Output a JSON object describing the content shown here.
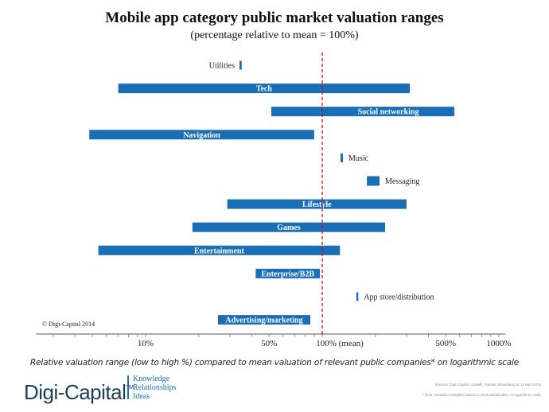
{
  "chart_data": {
    "type": "bar",
    "orientation": "horizontal-range",
    "title": "Mobile app category public market valuation ranges",
    "subtitle": "(percentage relative to mean = 100%)",
    "xlabel": "Relative valuation range (low to high %) compared to mean valuation of relevant public companies* on logarithmic scale",
    "xscale": "log",
    "xlim": [
      2.4,
      1090
    ],
    "xticks": [
      {
        "value": 10,
        "label": "10%"
      },
      {
        "value": 50,
        "label": "50%"
      },
      {
        "value": 100,
        "label": "100% (mean)"
      },
      {
        "value": 500,
        "label": "500%"
      },
      {
        "value": 1000,
        "label": "1000%"
      }
    ],
    "reference_line": {
      "value": 100,
      "style": "dashed",
      "color": "#cc0000"
    },
    "bar_color": "#1a6eb5",
    "categories": [
      {
        "name": "Utilities",
        "low": 34,
        "high": 35,
        "label": "left"
      },
      {
        "name": "Tech",
        "low": 7,
        "high": 313,
        "label": "inside"
      },
      {
        "name": "Social networking",
        "low": 51.5,
        "high": 560,
        "label": "inside-right"
      },
      {
        "name": "Navigation",
        "low": 4.8,
        "high": 90,
        "label": "inside"
      },
      {
        "name": "Music",
        "low": 127,
        "high": 131,
        "label": "right"
      },
      {
        "name": "Messaging",
        "low": 179,
        "high": 211,
        "label": "right"
      },
      {
        "name": "Lifestyle",
        "low": 29,
        "high": 300,
        "label": "inside"
      },
      {
        "name": "Games",
        "low": 18.4,
        "high": 227,
        "label": "inside"
      },
      {
        "name": "Entertainment",
        "low": 5.4,
        "high": 126,
        "label": "inside"
      },
      {
        "name": "Enterprise/B2B",
        "low": 42,
        "high": 97,
        "label": "inside"
      },
      {
        "name": "App store/distribution",
        "low": 156,
        "high": 160,
        "label": "right"
      },
      {
        "name": "Advertising/marketing",
        "low": 25.7,
        "high": 85.6,
        "label": "inside"
      }
    ],
    "grid": false
  },
  "copyright": "© Digi-Capital 2014",
  "footer": {
    "logo": "Digi-Capital",
    "tm": "TM",
    "tagline": [
      "Knowledge",
      "Relationships",
      "Ideas"
    ],
    "source": "Sources: Digi-Capital, Gaskell, Factset, Bloomberg at 11 April 2014",
    "note": "* Note: valuation multiples based on 2015 actual sales on logarithmic scale"
  }
}
